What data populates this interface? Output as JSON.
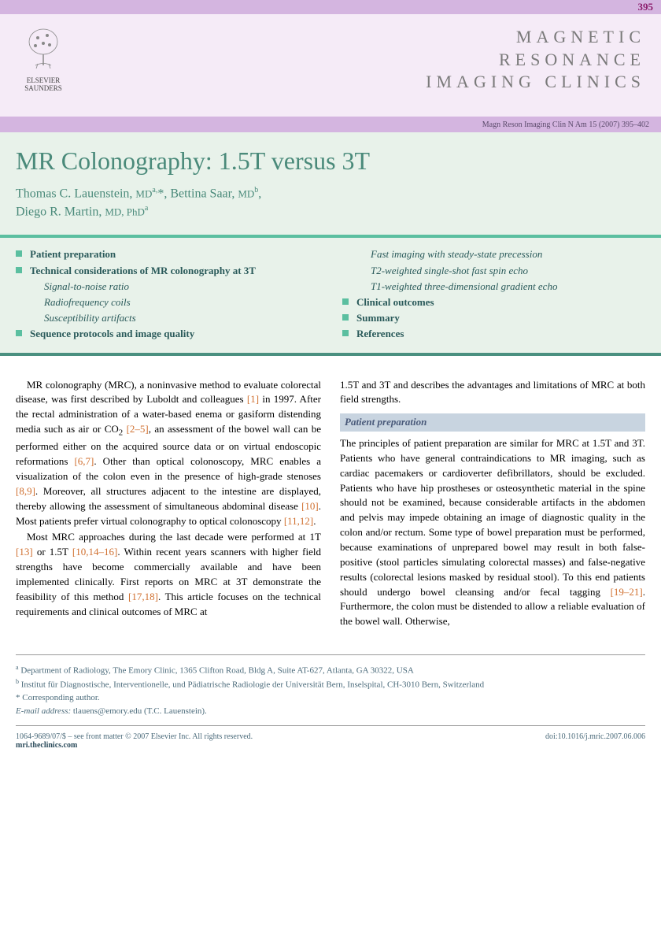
{
  "page_number": "395",
  "publisher": {
    "line1": "ELSEVIER",
    "line2": "SAUNDERS"
  },
  "journal_name": {
    "line1": "MAGNETIC",
    "line2": "RESONANCE",
    "line3": "IMAGING CLINICS"
  },
  "citation": "Magn Reson Imaging Clin N Am 15 (2007) 395–402",
  "article_title": "MR Colonography: 1.5T versus 3T",
  "authors_html": "Thomas C. Lauenstein, <span class='author-degree'>MD</span><sup>a,</sup>*, Bettina Saar, <span class='author-degree'>MD</span><sup>b</sup>,<br>Diego R. Martin, <span class='author-degree'>MD, PhD</span><sup>a</sup>",
  "outline": {
    "left": [
      {
        "type": "main",
        "label": "Patient preparation"
      },
      {
        "type": "main",
        "label": "Technical considerations of MR colonography at 3T"
      },
      {
        "type": "sub",
        "label": "Signal-to-noise ratio"
      },
      {
        "type": "sub",
        "label": "Radiofrequency coils"
      },
      {
        "type": "sub",
        "label": "Susceptibility artifacts"
      },
      {
        "type": "main",
        "label": "Sequence protocols and image quality"
      }
    ],
    "right": [
      {
        "type": "sub",
        "label": "Fast imaging with steady-state precession"
      },
      {
        "type": "sub",
        "label": "T2-weighted single-shot fast spin echo"
      },
      {
        "type": "sub",
        "label": "T1-weighted three-dimensional gradient echo"
      },
      {
        "type": "main",
        "label": "Clinical outcomes"
      },
      {
        "type": "main",
        "label": "Summary"
      },
      {
        "type": "main",
        "label": "References"
      }
    ]
  },
  "body": {
    "left_paras": [
      "MR colonography (MRC), a noninvasive method to evaluate colorectal disease, was first described by Luboldt and colleagues <span class='ref-link'>[1]</span> in 1997. After the rectal administration of a water-based enema or gasiform distending media such as air or CO<sub>2</sub> <span class='ref-link'>[2–5]</span>, an assessment of the bowel wall can be performed either on the acquired source data or on virtual endoscopic reformations <span class='ref-link'>[6,7]</span>. Other than optical colonoscopy, MRC enables a visualization of the colon even in the presence of high-grade stenoses <span class='ref-link'>[8,9]</span>. Moreover, all structures adjacent to the intestine are displayed, thereby allowing the assessment of simultaneous abdominal disease <span class='ref-link'>[10]</span>. Most patients prefer virtual colonography to optical colonoscopy <span class='ref-link'>[11,12]</span>.",
      "Most MRC approaches during the last decade were performed at 1T <span class='ref-link'>[13]</span> or 1.5T <span class='ref-link'>[10,14–16]</span>. Within recent years scanners with higher field strengths have become commercially available and have been implemented clinically. First reports on MRC at 3T demonstrate the feasibility of this method <span class='ref-link'>[17,18]</span>. This article focuses on the technical requirements and clinical outcomes of MRC at"
    ],
    "right_top": "1.5T and 3T and describes the advantages and limitations of MRC at both field strengths.",
    "section_header": "Patient preparation",
    "right_para": "The principles of patient preparation are similar for MRC at 1.5T and 3T. Patients who have general contraindications to MR imaging, such as cardiac pacemakers or cardioverter defibrillators, should be excluded. Patients who have hip prostheses or osteosynthetic material in the spine should not be examined, because considerable artifacts in the abdomen and pelvis may impede obtaining an image of diagnostic quality in the colon and/or rectum. Some type of bowel preparation must be performed, because examinations of unprepared bowel may result in both false-positive (stool particles simulating colorectal masses) and false-negative results (colorectal lesions masked by residual stool). To this end patients should undergo bowel cleansing and/or fecal tagging <span class='ref-link'>[19–21]</span>. Furthermore, the colon must be distended to allow a reliable evaluation of the bowel wall. Otherwise,"
  },
  "affiliations": {
    "a": "<sup>a</sup> Department of Radiology, The Emory Clinic, 1365 Clifton Road, Bldg A, Suite AT-627, Atlanta, GA 30322, USA",
    "b": "<sup>b</sup> Institut für Diagnostische, Interventionelle, und Pädiatrische Radiologie der Universität Bern, Inselspital, CH-3010 Bern, Switzerland",
    "corr": "* Corresponding author.",
    "email_label": "E-mail address:",
    "email": "tlauens@emory.edu (T.C. Lauenstein)."
  },
  "footer": {
    "issn": "1064-9689/07/$ – see front matter © 2007 Elsevier Inc. All rights reserved.",
    "url": "mri.theclinics.com",
    "doi": "doi:10.1016/j.mric.2007.06.006"
  },
  "colors": {
    "purple_bar": "#d4b5e0",
    "pink_header": "#f5ebf7",
    "teal_light": "#e8f2ea",
    "teal_accent": "#5bbfa0",
    "teal_border": "#4a9080",
    "teal_text": "#4a8a7a",
    "section_bg": "#c8d4e0",
    "ref_orange": "#d07030",
    "page_num": "#8b1a6b"
  }
}
